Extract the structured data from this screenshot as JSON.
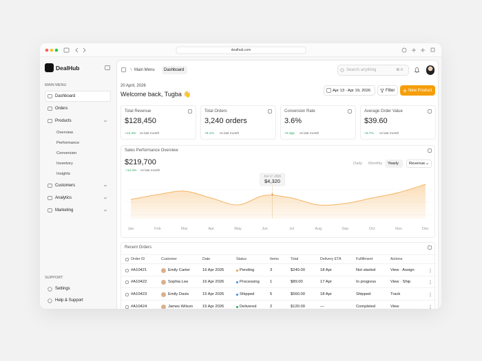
{
  "browser": {
    "url": "dealhub.com"
  },
  "sidebar": {
    "brand": "DealHub",
    "main_menu_label": "MAIN MENU",
    "items": [
      {
        "label": "Dashboard"
      },
      {
        "label": "Orders"
      },
      {
        "label": "Products",
        "children": [
          "Overview",
          "Performance",
          "Conversion",
          "Inventory",
          "Insights"
        ]
      },
      {
        "label": "Customers"
      },
      {
        "label": "Analytics"
      },
      {
        "label": "Marketing"
      }
    ],
    "active_item": "Dashboard",
    "support_label": "SUPPORT",
    "support_items": [
      "Settings",
      "Help & Support"
    ]
  },
  "header": {
    "breadcrumb": [
      "Main Menu",
      "Dashboard"
    ],
    "search_placeholder": "Search anything",
    "search_shortcut": "⌘ K",
    "date": "20 April, 2026",
    "greeting": "Welcome back, Tugba 👋",
    "date_range": "Apr 13 - Apr 19, 2026",
    "filter": "Filter",
    "new_product": "New Product"
  },
  "kpis": [
    {
      "title": "Total Revenue",
      "value": "$128,450",
      "change": "+12.4%",
      "note": "vs last month"
    },
    {
      "title": "Total Orders",
      "value": "3,240 orders",
      "change": "+8.1%",
      "note": "vs last month"
    },
    {
      "title": "Conversion Rate",
      "value": "3.6%",
      "change": "+0.4pp",
      "note": "vs last month"
    },
    {
      "title": "Average Order Value",
      "value": "$39.60",
      "change": "+5.7%",
      "note": "vs last month"
    }
  ],
  "sales": {
    "title": "Sales Performance Overview",
    "total": "$219,700",
    "change": "+12.4%",
    "note": "vs last month",
    "tabs": [
      "Daily",
      "Monthly",
      "Yearly"
    ],
    "active_tab": "Yearly",
    "metric": "Revenue",
    "chart": {
      "type": "area",
      "color": "#f5b461",
      "categories": [
        "Jan",
        "Feb",
        "Mar",
        "Apr",
        "May",
        "Jun",
        "Jul",
        "Aug",
        "Sep",
        "Oct",
        "Nov",
        "Dec"
      ],
      "values": [
        3560,
        4450,
        5080,
        3810,
        2540,
        4300,
        3810,
        2540,
        2800,
        3810,
        4830,
        6350
      ],
      "tooltip": {
        "label": "Jun 17, 2026",
        "value": "$4,320"
      }
    }
  },
  "orders": {
    "title": "Recent Orders",
    "columns": [
      "Order ID",
      "Customer",
      "Date",
      "Status",
      "Items",
      "Total",
      "Delivery ETA",
      "Fulfillment",
      "Actions"
    ],
    "rows": [
      [
        "#A10421",
        "Emily Carter",
        "16 Apr 2026",
        "Pending",
        "3",
        "$240.00",
        "18 Apr",
        "Not started",
        "View · Assign"
      ],
      [
        "#A10422",
        "Sophia Lee",
        "16 Apr 2026",
        "Processing",
        "1",
        "$89.00",
        "17 Apr",
        "In progress",
        "View · Ship"
      ],
      [
        "#A10423",
        "Emily Davis",
        "15 Apr 2026",
        "Shipped",
        "5",
        "$560.00",
        "18 Apr",
        "Shipped",
        "Track"
      ],
      [
        "#A10424",
        "James Wilson",
        "15 Apr 2026",
        "Delivered",
        "2",
        "$120.00",
        "—",
        "Completed",
        "View"
      ]
    ],
    "status_colors": {
      "Pending": "#f39c32",
      "Processing": "#3b82f6",
      "Shipped": "#3b82f6",
      "Delivered": "#22a55a"
    }
  }
}
